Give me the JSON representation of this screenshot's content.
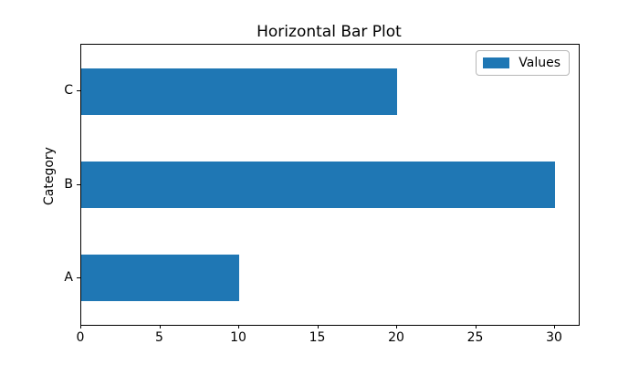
{
  "chart_data": {
    "type": "bar",
    "orientation": "horizontal",
    "title": "Horizontal Bar Plot",
    "xlabel": "",
    "ylabel": "Category",
    "categories": [
      "A",
      "B",
      "C"
    ],
    "values": [
      10,
      30,
      20
    ],
    "series": [
      {
        "name": "Values",
        "values": [
          10,
          30,
          20
        ]
      }
    ],
    "legend_label": "Values",
    "legend_position": "upper right",
    "x_ticks": [
      0,
      5,
      10,
      15,
      20,
      25,
      30
    ],
    "xlim": [
      0,
      31.5
    ],
    "ylim": [
      -0.5,
      2.5
    ],
    "bar_height_units": 0.5,
    "grid": false,
    "bar_color": "#1f77b4",
    "axis_color": "#000000",
    "legend_border_color": "#b7b7b7"
  }
}
